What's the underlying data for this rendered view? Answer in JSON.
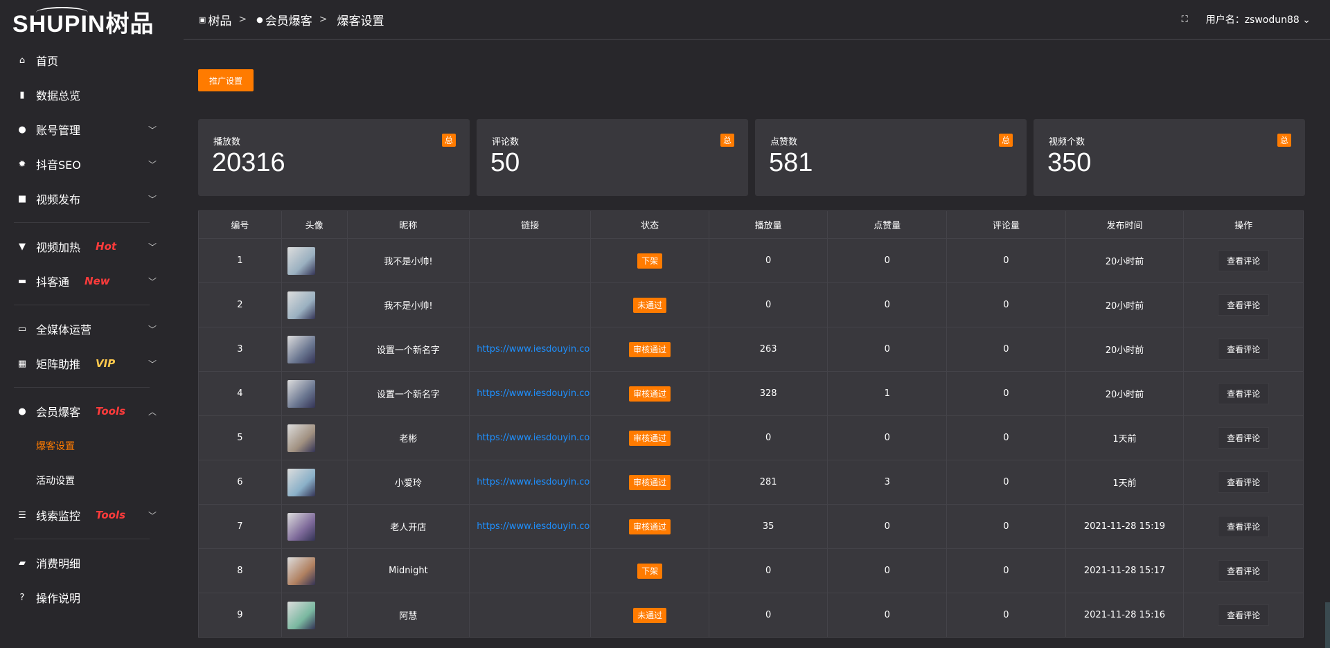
{
  "brand": {
    "logo_text": "SHUPIN树品"
  },
  "sidebar": {
    "items": [
      {
        "label": "首页",
        "icon": "home-icon",
        "glyph": "⌂"
      },
      {
        "label": "数据总览",
        "icon": "bar-chart-icon",
        "glyph": "▮"
      },
      {
        "label": "账号管理",
        "icon": "user-icon",
        "glyph": "●",
        "chevron": true
      },
      {
        "label": "抖音SEO",
        "icon": "gear-icon",
        "glyph": "✹",
        "chevron": true
      },
      {
        "label": "视频发布",
        "icon": "camera-icon",
        "glyph": "■",
        "chevron": true
      },
      {
        "label": "视频加热",
        "icon": "banner-icon",
        "glyph": "▼",
        "tag": "Hot",
        "tag_color": "#ff3b3b",
        "chevron": true
      },
      {
        "label": "抖客通",
        "icon": "chat-icon",
        "glyph": "▬",
        "tag": "New",
        "tag_color": "#ff3b3b",
        "chevron": true
      },
      {
        "label": "全媒体运营",
        "icon": "monitor-icon",
        "glyph": "▭",
        "chevron": true
      },
      {
        "label": "矩阵助推",
        "icon": "grid-icon",
        "glyph": "▦",
        "tag": "VIP",
        "tag_color": "#ffc94d",
        "chevron": true
      },
      {
        "label": "会员爆客",
        "icon": "user-icon",
        "glyph": "●",
        "tag": "Tools",
        "tag_color": "#ff3b3b",
        "chevron": true,
        "expanded": true
      },
      {
        "label": "线索监控",
        "icon": "sliders-icon",
        "glyph": "☰",
        "tag": "Tools",
        "tag_color": "#ff3b3b",
        "chevron": true
      },
      {
        "label": "消费明细",
        "icon": "wallet-icon",
        "glyph": "▰"
      },
      {
        "label": "操作说明",
        "icon": "help-icon",
        "glyph": "?"
      }
    ],
    "sub_items": [
      {
        "label": "爆客设置",
        "active": true
      },
      {
        "label": "活动设置"
      }
    ]
  },
  "header": {
    "breadcrumb": [
      "树品",
      "会员爆客",
      "爆客设置"
    ],
    "separator": ">",
    "username": "用户名：zswodun88"
  },
  "toolbar": {
    "promo_label": "推广设置"
  },
  "stats": [
    {
      "label": "播放数",
      "value": "20316",
      "badge": "总"
    },
    {
      "label": "评论数",
      "value": "50",
      "badge": "总"
    },
    {
      "label": "点赞数",
      "value": "581",
      "badge": "总"
    },
    {
      "label": "视频个数",
      "value": "350",
      "badge": "总"
    }
  ],
  "table": {
    "columns": [
      "编号",
      "头像",
      "昵称",
      "链接",
      "状态",
      "播放量",
      "点赞量",
      "评论量",
      "发布时间",
      "操作"
    ],
    "action_label": "查看评论",
    "rows": [
      {
        "id": "1",
        "name": "我不是小帅!",
        "link": "",
        "status": "下架",
        "plays": "0",
        "likes": "0",
        "comments": "0",
        "time": "20小时前",
        "avatar": "#9ab0c0"
      },
      {
        "id": "2",
        "name": "我不是小帅!",
        "link": "",
        "status": "未通过",
        "plays": "0",
        "likes": "0",
        "comments": "0",
        "time": "20小时前",
        "avatar": "#9ab0c0"
      },
      {
        "id": "3",
        "name": "设置一个新名字",
        "link": "https://www.iesdouyin.com",
        "status": "审核通过",
        "plays": "263",
        "likes": "0",
        "comments": "0",
        "time": "20小时前",
        "avatar": "#6a7690"
      },
      {
        "id": "4",
        "name": "设置一个新名字",
        "link": "https://www.iesdouyin.com",
        "status": "审核通过",
        "plays": "328",
        "likes": "1",
        "comments": "0",
        "time": "20小时前",
        "avatar": "#6a7690"
      },
      {
        "id": "5",
        "name": "老彬",
        "link": "https://www.iesdouyin.com",
        "status": "审核通过",
        "plays": "0",
        "likes": "0",
        "comments": "0",
        "time": "1天前",
        "avatar": "#a09080"
      },
      {
        "id": "6",
        "name": "小爱玲",
        "link": "https://www.iesdouyin.com",
        "status": "审核通过",
        "plays": "281",
        "likes": "3",
        "comments": "0",
        "time": "1天前",
        "avatar": "#8ab0c8"
      },
      {
        "id": "7",
        "name": "老人开店",
        "link": "https://www.iesdouyin.com",
        "status": "审核通过",
        "plays": "35",
        "likes": "0",
        "comments": "0",
        "time": "2021-11-28 15:19",
        "avatar": "#7e6a9a"
      },
      {
        "id": "8",
        "name": "Midnight",
        "link": "",
        "status": "下架",
        "plays": "0",
        "likes": "0",
        "comments": "0",
        "time": "2021-11-28 15:17",
        "avatar": "#b08060"
      },
      {
        "id": "9",
        "name": "阿慧",
        "link": "",
        "status": "未通过",
        "plays": "0",
        "likes": "0",
        "comments": "0",
        "time": "2021-11-28 15:16",
        "avatar": "#7ab8a0"
      }
    ]
  },
  "colors": {
    "accent": "#ff7b00",
    "link": "#1e90ff",
    "background": "#28272b",
    "panel": "#39383d"
  }
}
